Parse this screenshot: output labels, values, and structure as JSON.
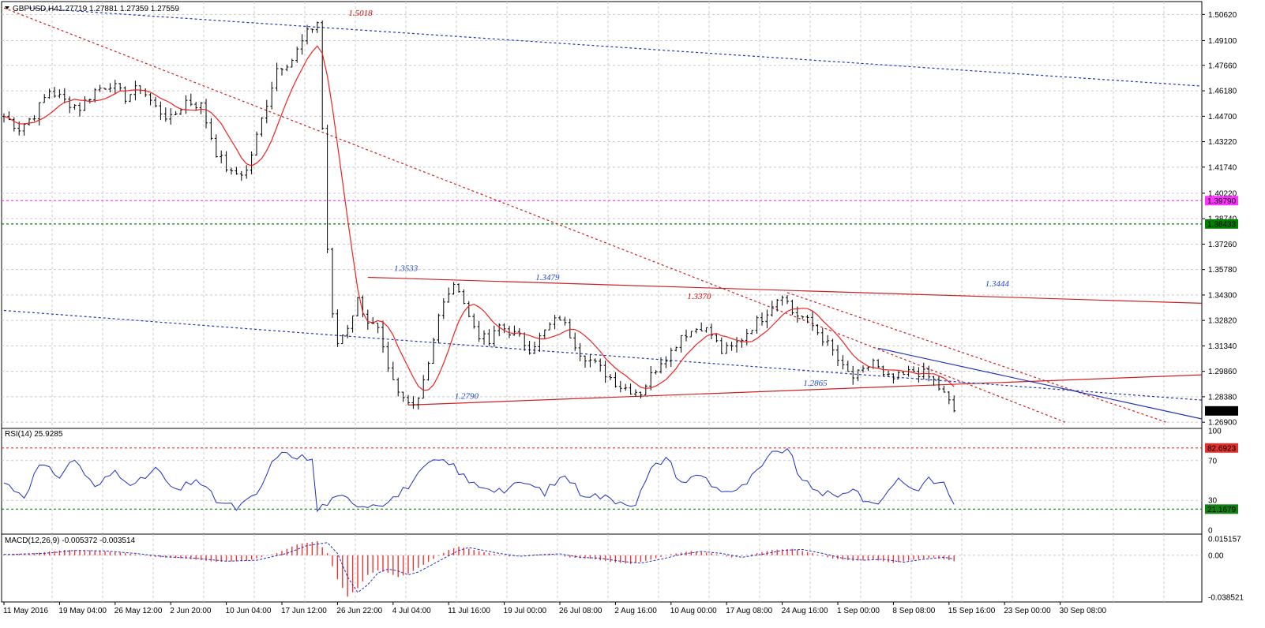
{
  "main": {
    "title": "GBPUSD,H4",
    "ohlc": "1.27719 1.27881 1.27359 1.27559",
    "ylim": [
      1.2654,
      1.5137
    ],
    "ticks": [
      "1.50620",
      "1.49100",
      "1.47660",
      "1.46180",
      "1.44700",
      "1.43220",
      "1.41740",
      "1.40220",
      "1.38740",
      "1.37260",
      "1.35780",
      "1.34300",
      "1.32820",
      "1.31340",
      "1.29860",
      "1.28380",
      "1.26900"
    ],
    "tick_values": [
      1.5062,
      1.491,
      1.4766,
      1.4618,
      1.447,
      1.4322,
      1.4174,
      1.4022,
      1.3874,
      1.3726,
      1.3578,
      1.343,
      1.3282,
      1.3134,
      1.2986,
      1.2838,
      1.269
    ],
    "hlines": [
      {
        "label": "1.39790",
        "value": 1.3979,
        "color": "#ff33ff"
      },
      {
        "label": "1.38433",
        "value": 1.38433,
        "color": "#008000"
      }
    ],
    "current": {
      "label": "1.27559",
      "value": 1.27559
    },
    "annotations": [
      {
        "text": "1.5018",
        "color": "#cc0000",
        "x": 71,
        "y": 1.5018
      },
      {
        "text": "1.3533",
        "color": "#2244cc",
        "x": 80,
        "y": 1.3533
      },
      {
        "text": "1.3479",
        "color": "#2244cc",
        "x": 108,
        "y": 1.3479
      },
      {
        "text": "1.3370",
        "color": "#cc0000",
        "x": 138,
        "y": 1.337
      },
      {
        "text": "1.3444",
        "color": "#2244cc",
        "x": 197,
        "y": 1.3444
      },
      {
        "text": "1.2790",
        "color": "#2244cc",
        "x": 92,
        "y": 1.279
      },
      {
        "text": "1.2865",
        "color": "#2244cc",
        "x": 161,
        "y": 1.2865
      }
    ]
  },
  "rsi": {
    "title": "RSI(14) 25.9285",
    "ticks": [
      "100",
      "70",
      "30",
      "0"
    ],
    "tick_values": [
      100,
      70,
      30,
      0
    ],
    "levels": [
      {
        "label": "82.6923",
        "value": 82.6923
      },
      {
        "label": "21.1679",
        "value": 21.1679
      }
    ]
  },
  "macd": {
    "title": "MACD(12,26,9) -0.005372 -0.003514",
    "ticks": [
      "0.015157",
      "0.00",
      "-0.038521"
    ],
    "tick_values": [
      0.015157,
      0,
      -0.038521
    ]
  },
  "x_axis": {
    "labels": [
      "11 May 2016",
      "19 May 04:00",
      "26 May 12:00",
      "2 Jun 20:00",
      "10 Jun 04:00",
      "17 Jun 12:00",
      "26 Jun 22:00",
      "4 Jul 04:00",
      "11 Jul 16:00",
      "19 Jul 00:00",
      "26 Jul 08:00",
      "2 Aug 16:00",
      "10 Aug 00:00",
      "17 Aug 08:00",
      "24 Aug 16:00",
      "1 Sep 00:00",
      "8 Sep 08:00",
      "15 Sep 16:00",
      "23 Sep 00:00",
      "30 Sep 08:00"
    ],
    "label_index": [
      0,
      11,
      22,
      33,
      44,
      55,
      66,
      77,
      88,
      99,
      110,
      121,
      132,
      143,
      154,
      165,
      176,
      187,
      198,
      209
    ]
  },
  "chart_data": {
    "type": "candlestick",
    "symbol": "GBPUSD",
    "timeframe": "H4",
    "x_start": "11 May 2016",
    "x_end": "30 Sep 08:00",
    "close_path": [
      [
        0,
        1.447
      ],
      [
        3,
        1.44
      ],
      [
        6,
        1.448
      ],
      [
        9,
        1.462
      ],
      [
        12,
        1.456
      ],
      [
        15,
        1.452
      ],
      [
        18,
        1.462
      ],
      [
        21,
        1.466
      ],
      [
        24,
        1.458
      ],
      [
        27,
        1.464
      ],
      [
        30,
        1.452
      ],
      [
        33,
        1.445
      ],
      [
        36,
        1.456
      ],
      [
        39,
        1.453
      ],
      [
        42,
        1.426
      ],
      [
        45,
        1.413
      ],
      [
        48,
        1.415
      ],
      [
        51,
        1.445
      ],
      [
        54,
        1.475
      ],
      [
        57,
        1.48
      ],
      [
        60,
        1.495
      ],
      [
        62,
        1.5018
      ],
      [
        63,
        1.44
      ],
      [
        64,
        1.37
      ],
      [
        65,
        1.33
      ],
      [
        66,
        1.315
      ],
      [
        68,
        1.325
      ],
      [
        70,
        1.34
      ],
      [
        72,
        1.328
      ],
      [
        74,
        1.322
      ],
      [
        76,
        1.298
      ],
      [
        78,
        1.285
      ],
      [
        80,
        1.28
      ],
      [
        82,
        1.284
      ],
      [
        84,
        1.305
      ],
      [
        86,
        1.33
      ],
      [
        88,
        1.345
      ],
      [
        90,
        1.3479
      ],
      [
        92,
        1.33
      ],
      [
        94,
        1.32
      ],
      [
        96,
        1.315
      ],
      [
        98,
        1.325
      ],
      [
        100,
        1.322
      ],
      [
        102,
        1.318
      ],
      [
        104,
        1.312
      ],
      [
        106,
        1.318
      ],
      [
        108,
        1.325
      ],
      [
        110,
        1.33
      ],
      [
        112,
        1.32
      ],
      [
        114,
        1.31
      ],
      [
        116,
        1.305
      ],
      [
        118,
        1.3
      ],
      [
        120,
        1.295
      ],
      [
        122,
        1.29
      ],
      [
        124,
        1.288
      ],
      [
        126,
        1.2865
      ],
      [
        128,
        1.296
      ],
      [
        130,
        1.305
      ],
      [
        132,
        1.31
      ],
      [
        134,
        1.32
      ],
      [
        136,
        1.322
      ],
      [
        138,
        1.325
      ],
      [
        140,
        1.32
      ],
      [
        142,
        1.31
      ],
      [
        144,
        1.312
      ],
      [
        146,
        1.318
      ],
      [
        148,
        1.325
      ],
      [
        150,
        1.33
      ],
      [
        152,
        1.338
      ],
      [
        154,
        1.3444
      ],
      [
        156,
        1.333
      ],
      [
        158,
        1.33
      ],
      [
        160,
        1.325
      ],
      [
        162,
        1.318
      ],
      [
        164,
        1.31
      ],
      [
        166,
        1.3
      ],
      [
        168,
        1.295
      ],
      [
        170,
        1.298
      ],
      [
        172,
        1.305
      ],
      [
        174,
        1.295
      ],
      [
        176,
        1.294
      ],
      [
        178,
        1.296
      ],
      [
        180,
        1.299
      ],
      [
        182,
        1.297
      ],
      [
        184,
        1.293
      ],
      [
        186,
        1.285
      ],
      [
        188,
        1.27559
      ]
    ],
    "rsi_path": [
      [
        0,
        48
      ],
      [
        4,
        35
      ],
      [
        7,
        65
      ],
      [
        11,
        55
      ],
      [
        14,
        72
      ],
      [
        18,
        42
      ],
      [
        22,
        60
      ],
      [
        26,
        45
      ],
      [
        30,
        62
      ],
      [
        34,
        38
      ],
      [
        38,
        52
      ],
      [
        42,
        30
      ],
      [
        46,
        22
      ],
      [
        50,
        35
      ],
      [
        54,
        76
      ],
      [
        58,
        75
      ],
      [
        61,
        70
      ],
      [
        62,
        20
      ],
      [
        64,
        28
      ],
      [
        67,
        33
      ],
      [
        71,
        25
      ],
      [
        75,
        28
      ],
      [
        78,
        35
      ],
      [
        82,
        55
      ],
      [
        85,
        70
      ],
      [
        89,
        65
      ],
      [
        92,
        48
      ],
      [
        95,
        44
      ],
      [
        99,
        40
      ],
      [
        103,
        48
      ],
      [
        107,
        38
      ],
      [
        111,
        56
      ],
      [
        114,
        38
      ],
      [
        118,
        34
      ],
      [
        121,
        30
      ],
      [
        125,
        27
      ],
      [
        128,
        60
      ],
      [
        131,
        74
      ],
      [
        134,
        48
      ],
      [
        138,
        56
      ],
      [
        141,
        42
      ],
      [
        145,
        38
      ],
      [
        149,
        58
      ],
      [
        152,
        76
      ],
      [
        155,
        82.69
      ],
      [
        158,
        48
      ],
      [
        162,
        38
      ],
      [
        165,
        32
      ],
      [
        168,
        44
      ],
      [
        171,
        25
      ],
      [
        174,
        32
      ],
      [
        177,
        54
      ],
      [
        180,
        40
      ],
      [
        183,
        50
      ],
      [
        186,
        47
      ],
      [
        188,
        25.93
      ]
    ],
    "macd_hist_path": [
      [
        0,
        0.001
      ],
      [
        6,
        0.002
      ],
      [
        12,
        0.005
      ],
      [
        18,
        0.0045
      ],
      [
        24,
        0.002
      ],
      [
        30,
        -0.0015
      ],
      [
        36,
        -0.003
      ],
      [
        42,
        -0.006
      ],
      [
        48,
        -0.005
      ],
      [
        54,
        0.002
      ],
      [
        58,
        0.01
      ],
      [
        62,
        0.013
      ],
      [
        64,
        0.002
      ],
      [
        66,
        -0.022
      ],
      [
        68,
        -0.038
      ],
      [
        70,
        -0.03
      ],
      [
        72,
        -0.018
      ],
      [
        74,
        -0.014
      ],
      [
        76,
        -0.016
      ],
      [
        78,
        -0.02
      ],
      [
        80,
        -0.017
      ],
      [
        84,
        -0.006
      ],
      [
        88,
        0.005
      ],
      [
        90,
        0.008
      ],
      [
        92,
        0.006
      ],
      [
        96,
        0.002
      ],
      [
        100,
        -0.001
      ],
      [
        104,
        0.0005
      ],
      [
        108,
        0.0015
      ],
      [
        112,
        -0.002
      ],
      [
        116,
        -0.003
      ],
      [
        120,
        -0.006
      ],
      [
        124,
        -0.008
      ],
      [
        128,
        -0.004
      ],
      [
        132,
        0.001
      ],
      [
        136,
        0.004
      ],
      [
        140,
        0.002
      ],
      [
        144,
        -0.002
      ],
      [
        148,
        0.001
      ],
      [
        152,
        0.005
      ],
      [
        156,
        0.006
      ],
      [
        160,
        0.002
      ],
      [
        164,
        -0.003
      ],
      [
        168,
        -0.005
      ],
      [
        172,
        -0.004
      ],
      [
        176,
        -0.007
      ],
      [
        180,
        -0.004
      ],
      [
        184,
        -0.002
      ],
      [
        188,
        -0.0054
      ]
    ],
    "trendlines": [
      {
        "color": "#cc2222",
        "dash": false,
        "from": [
          72,
          1.3533
        ],
        "to": [
          250,
          1.337
        ]
      },
      {
        "color": "#cc2222",
        "dash": false,
        "from": [
          80,
          1.279
        ],
        "to": [
          250,
          1.298
        ]
      },
      {
        "color": "#cc2222",
        "dash": true,
        "from": [
          0,
          1.51
        ],
        "to": [
          210,
          1.269
        ]
      },
      {
        "color": "#cc2222",
        "dash": true,
        "from": [
          155,
          1.3444
        ],
        "to": [
          230,
          1.269
        ]
      },
      {
        "color": "#2233bb",
        "dash": true,
        "from": [
          5,
          1.51
        ],
        "to": [
          250,
          1.462
        ]
      },
      {
        "color": "#2233bb",
        "dash": true,
        "from": [
          0,
          1.334
        ],
        "to": [
          250,
          1.279
        ]
      },
      {
        "color": "#2233bb",
        "dash": false,
        "from": [
          173,
          1.312
        ],
        "to": [
          240,
          1.269
        ]
      }
    ]
  }
}
